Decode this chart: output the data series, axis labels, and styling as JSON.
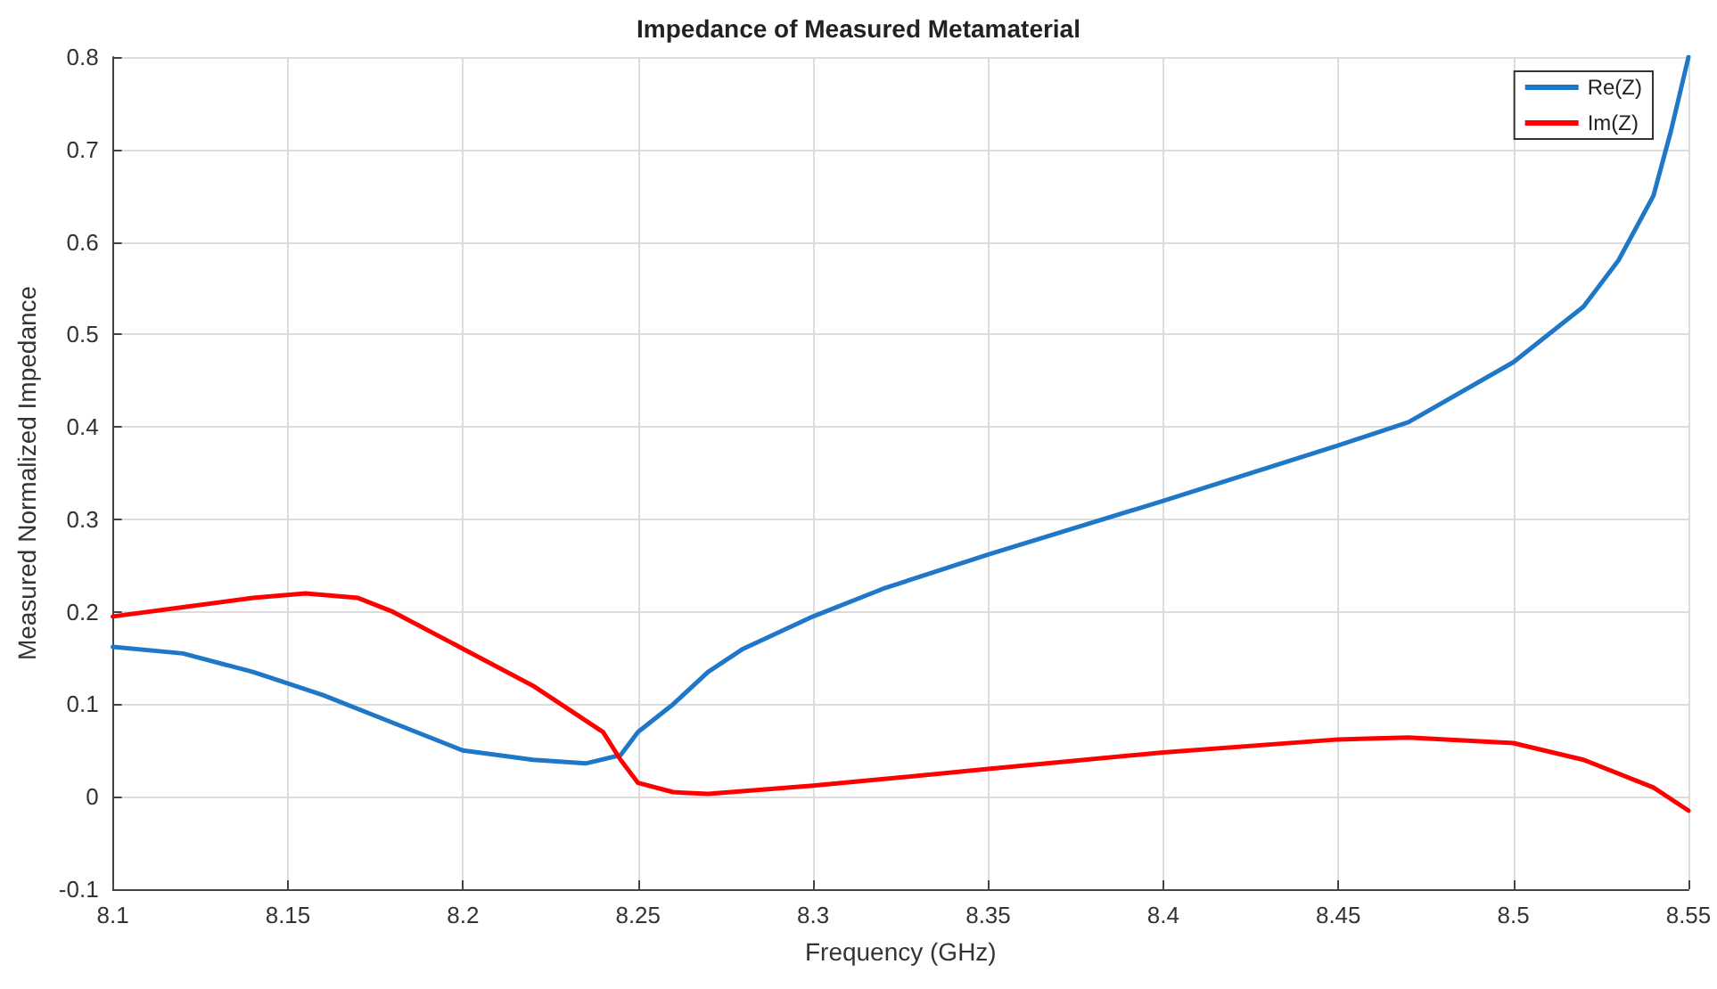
{
  "chart_data": {
    "type": "line",
    "title": "Impedance of Measured Metamaterial",
    "xlabel": "Frequency (GHz)",
    "ylabel": "Measured Normalized Impedance",
    "xlim": [
      8.1,
      8.55
    ],
    "xticks": [
      8.1,
      8.15,
      8.2,
      8.25,
      8.3,
      8.35,
      8.4,
      8.45,
      8.5,
      8.55
    ],
    "ylim": [
      -0.1,
      0.8
    ],
    "yticks": [
      -0.1,
      0,
      0.1,
      0.2,
      0.3,
      0.4,
      0.5,
      0.6,
      0.7,
      0.8
    ],
    "grid": true,
    "legend": "top right",
    "marker": "none",
    "line_style": "solid",
    "series": [
      {
        "name": "Re(Z)",
        "color": "#1f77c8",
        "x": [
          8.1,
          8.12,
          8.14,
          8.16,
          8.18,
          8.2,
          8.22,
          8.235,
          8.245,
          8.25,
          8.26,
          8.27,
          8.28,
          8.3,
          8.32,
          8.35,
          8.4,
          8.45,
          8.47,
          8.5,
          8.52,
          8.53,
          8.54,
          8.545,
          8.55
        ],
        "values": [
          0.162,
          0.155,
          0.135,
          0.11,
          0.08,
          0.05,
          0.04,
          0.036,
          0.045,
          0.07,
          0.1,
          0.135,
          0.16,
          0.195,
          0.225,
          0.262,
          0.32,
          0.38,
          0.405,
          0.47,
          0.53,
          0.58,
          0.65,
          0.72,
          0.8
        ]
      },
      {
        "name": "Im(Z)",
        "color": "#ff0000",
        "x": [
          8.1,
          8.12,
          8.14,
          8.155,
          8.17,
          8.18,
          8.2,
          8.22,
          8.24,
          8.245,
          8.25,
          8.26,
          8.27,
          8.3,
          8.35,
          8.4,
          8.45,
          8.47,
          8.5,
          8.52,
          8.54,
          8.55
        ],
        "values": [
          0.195,
          0.205,
          0.215,
          0.22,
          0.215,
          0.2,
          0.16,
          0.12,
          0.07,
          0.04,
          0.015,
          0.005,
          0.003,
          0.012,
          0.03,
          0.048,
          0.062,
          0.064,
          0.058,
          0.04,
          0.01,
          -0.015
        ]
      }
    ]
  }
}
